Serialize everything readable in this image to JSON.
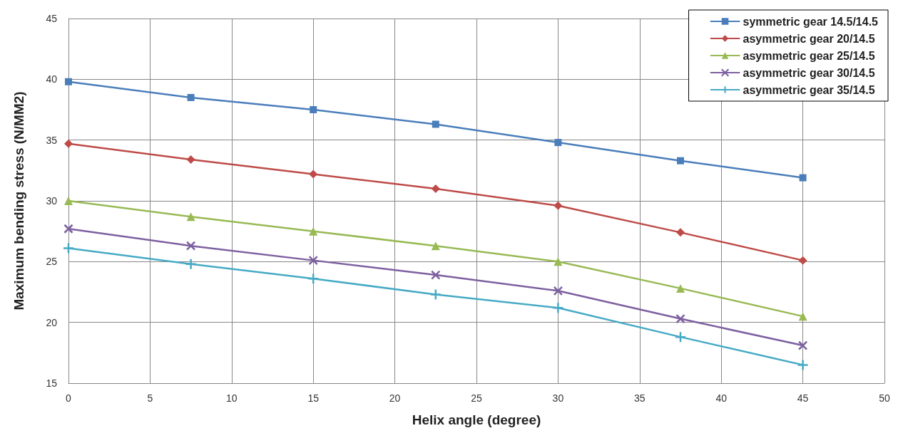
{
  "chart_data": {
    "type": "line",
    "xlabel": "Helix angle (degree)",
    "ylabel": "Maximum bending stress (N/MM2)",
    "x": [
      0,
      7.5,
      15,
      22.5,
      30,
      37.5,
      45
    ],
    "series": [
      {
        "name": "symmetric gear 14.5/14.5",
        "color": "#4a7ebb",
        "marker": "square",
        "values": [
          39.8,
          38.5,
          37.5,
          36.3,
          34.8,
          33.3,
          31.9
        ]
      },
      {
        "name": "asymmetric gear 20/14.5",
        "color": "#be4b48",
        "marker": "diamond",
        "values": [
          34.7,
          33.4,
          32.2,
          31.0,
          29.6,
          27.4,
          25.1
        ]
      },
      {
        "name": "asymmetric gear 25/14.5",
        "color": "#98b954",
        "marker": "triangle",
        "values": [
          30.0,
          28.7,
          27.5,
          26.3,
          25.0,
          22.8,
          20.5
        ]
      },
      {
        "name": "asymmetric gear 30/14.5",
        "color": "#7d60a0",
        "marker": "cross",
        "values": [
          27.7,
          26.3,
          25.1,
          23.9,
          22.6,
          20.3,
          18.1
        ]
      },
      {
        "name": "asymmetric gear 35/14.5",
        "color": "#46aac5",
        "marker": "plus",
        "values": [
          26.1,
          24.8,
          23.6,
          22.3,
          21.2,
          18.8,
          16.5
        ]
      }
    ],
    "xlim": [
      0,
      50
    ],
    "xticks": [
      0,
      5,
      10,
      15,
      20,
      25,
      30,
      35,
      40,
      45,
      50
    ],
    "ylim": [
      15,
      45
    ],
    "yticks": [
      15,
      20,
      25,
      30,
      35,
      40,
      45
    ],
    "grid": true,
    "legend": "top right",
    "line_style": "solid"
  }
}
